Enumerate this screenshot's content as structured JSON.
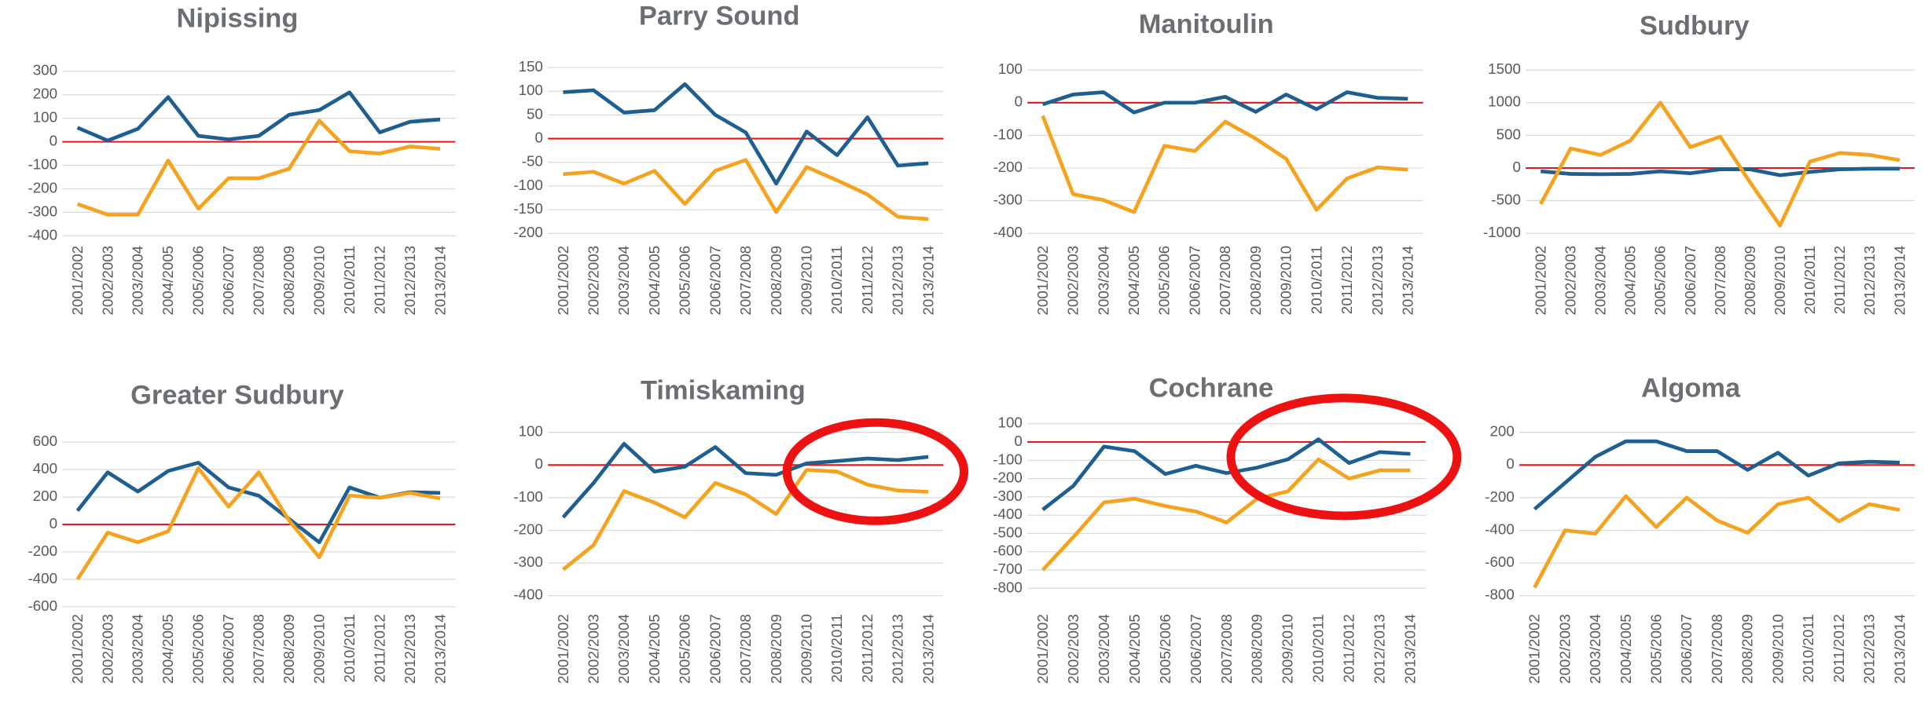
{
  "chart_data": [
    {
      "type": "line",
      "title": "Nipissing",
      "categories": [
        "2001/2002",
        "2002/2003",
        "2003/2004",
        "2004/2005",
        "2005/2006",
        "2006/2007",
        "2007/2008",
        "2008/2009",
        "2009/2010",
        "2010/2011",
        "2011/2012",
        "2012/2013",
        "2013/2014"
      ],
      "series": [
        {
          "color": "#1f5f8f",
          "values": [
            60,
            5,
            55,
            190,
            25,
            10,
            25,
            115,
            135,
            210,
            40,
            85,
            95
          ]
        },
        {
          "color": "#f5a31e",
          "values": [
            -265,
            -310,
            -310,
            -80,
            -285,
            -155,
            -155,
            -115,
            90,
            -40,
            -50,
            -20,
            -30
          ]
        }
      ],
      "ylim": [
        -400,
        300
      ],
      "yticks": [
        300,
        200,
        100,
        0,
        -100,
        -200,
        -300,
        -400
      ],
      "grid": true,
      "reference_line": {
        "value": 0,
        "color": "#e8141a"
      }
    },
    {
      "type": "line",
      "title": "Parry Sound",
      "categories": [
        "2001/2002",
        "2002/2003",
        "2003/2004",
        "2004/2005",
        "2005/2006",
        "2006/2007",
        "2007/2008",
        "2008/2009",
        "2009/2010",
        "2010/2011",
        "2011/2012",
        "2012/2013",
        "2013/2014"
      ],
      "series": [
        {
          "color": "#1f5f8f",
          "values": [
            98,
            102,
            55,
            60,
            115,
            50,
            13,
            -95,
            15,
            -35,
            45,
            -57,
            -52
          ]
        },
        {
          "color": "#f5a31e",
          "values": [
            -75,
            -70,
            -95,
            -68,
            -138,
            -68,
            -45,
            -155,
            -60,
            -88,
            -118,
            -165,
            -170
          ]
        }
      ],
      "ylim": [
        -200,
        150
      ],
      "yticks": [
        150,
        100,
        50,
        0,
        -50,
        -100,
        -150,
        -200
      ],
      "grid": true,
      "reference_line": {
        "value": 0,
        "color": "#e8141a"
      }
    },
    {
      "type": "line",
      "title": "Manitoulin",
      "categories": [
        "2001/2002",
        "2002/2003",
        "2003/2004",
        "2004/2005",
        "2005/2006",
        "2006/2007",
        "2007/2008",
        "2008/2009",
        "2009/2010",
        "2010/2011",
        "2011/2012",
        "2012/2013",
        "2013/2014"
      ],
      "series": [
        {
          "color": "#1f5f8f",
          "values": [
            -5,
            25,
            32,
            -30,
            0,
            0,
            18,
            -28,
            25,
            -20,
            32,
            15,
            12
          ]
        },
        {
          "color": "#f5a31e",
          "values": [
            -40,
            -280,
            -298,
            -335,
            -132,
            -148,
            -58,
            -110,
            -172,
            -328,
            -232,
            -198,
            -205
          ]
        }
      ],
      "ylim": [
        -400,
        100
      ],
      "yticks": [
        100,
        0,
        -100,
        -200,
        -300,
        -400
      ],
      "grid": true,
      "reference_line": {
        "value": 0,
        "color": "#e8141a"
      }
    },
    {
      "type": "line",
      "title": "Sudbury",
      "categories": [
        "2001/2002",
        "2002/2003",
        "2003/2004",
        "2004/2005",
        "2005/2006",
        "2006/2007",
        "2007/2008",
        "2008/2009",
        "2009/2010",
        "2010/2011",
        "2011/2012",
        "2012/2013",
        "2013/2014"
      ],
      "series": [
        {
          "color": "#1f5f8f",
          "values": [
            -50,
            -90,
            -95,
            -90,
            -50,
            -80,
            -20,
            -20,
            -110,
            -60,
            -20,
            -10,
            -10
          ]
        },
        {
          "color": "#f5a31e",
          "values": [
            -550,
            300,
            200,
            420,
            1000,
            320,
            480,
            -220,
            -880,
            100,
            230,
            200,
            120
          ]
        }
      ],
      "ylim": [
        -1000,
        1500
      ],
      "yticks": [
        1500,
        1000,
        500,
        0,
        -500,
        -1000
      ],
      "grid": true,
      "reference_line": {
        "value": 0,
        "color": "#e8141a"
      }
    },
    {
      "type": "line",
      "title": "Greater Sudbury",
      "categories": [
        "2001/2002",
        "2002/2003",
        "2003/2004",
        "2004/2005",
        "2005/2006",
        "2006/2007",
        "2007/2008",
        "2008/2009",
        "2009/2010",
        "2010/2011",
        "2011/2012",
        "2012/2013",
        "2013/2014"
      ],
      "series": [
        {
          "color": "#1f5f8f",
          "values": [
            100,
            380,
            240,
            390,
            450,
            270,
            210,
            40,
            -130,
            270,
            195,
            235,
            230
          ]
        },
        {
          "color": "#f5a31e",
          "values": [
            -400,
            -60,
            -130,
            -50,
            410,
            130,
            380,
            30,
            -240,
            210,
            195,
            230,
            190
          ]
        }
      ],
      "ylim": [
        -600,
        600
      ],
      "yticks": [
        600,
        400,
        200,
        0,
        -200,
        -400,
        -600
      ],
      "grid": true,
      "reference_line": {
        "value": 0,
        "color": "#e8141a"
      }
    },
    {
      "type": "line",
      "title": "Timiskaming",
      "categories": [
        "2001/2002",
        "2002/2003",
        "2003/2004",
        "2004/2005",
        "2005/2006",
        "2006/2007",
        "2007/2008",
        "2008/2009",
        "2009/2010",
        "2010/2011",
        "2011/2012",
        "2012/2013",
        "2013/2014"
      ],
      "series": [
        {
          "color": "#1f5f8f",
          "values": [
            -160,
            -55,
            65,
            -20,
            -5,
            55,
            -25,
            -30,
            5,
            12,
            20,
            15,
            25
          ]
        },
        {
          "color": "#f5a31e",
          "values": [
            -320,
            -245,
            -80,
            -115,
            -160,
            -55,
            -90,
            -150,
            -15,
            -20,
            -60,
            -78,
            -82
          ]
        }
      ],
      "ylim": [
        -400,
        100
      ],
      "yticks": [
        100,
        0,
        -100,
        -200,
        -300,
        -400
      ],
      "grid": true,
      "reference_line": {
        "value": 0,
        "color": "#e8141a"
      }
    },
    {
      "type": "line",
      "title": "Cochrane",
      "categories": [
        "2001/2002",
        "2002/2003",
        "2003/2004",
        "2004/2005",
        "2005/2006",
        "2006/2007",
        "2007/2008",
        "2008/2009",
        "2009/2010",
        "2010/2011",
        "2011/2012",
        "2012/2013",
        "2013/2014"
      ],
      "series": [
        {
          "color": "#1f5f8f",
          "values": [
            -370,
            -240,
            -25,
            -50,
            -175,
            -130,
            -170,
            -140,
            -95,
            15,
            -115,
            -55,
            -65
          ]
        },
        {
          "color": "#f5a31e",
          "values": [
            -700,
            -520,
            -330,
            -310,
            -350,
            -380,
            -440,
            -310,
            -270,
            -95,
            -200,
            -155,
            -155
          ]
        }
      ],
      "ylim": [
        -800,
        100
      ],
      "yticks": [
        100,
        0,
        -100,
        -200,
        -300,
        -400,
        -500,
        -600,
        -700,
        -800
      ],
      "grid": true,
      "reference_line": {
        "value": 0,
        "color": "#e8141a"
      }
    },
    {
      "type": "line",
      "title": "Algoma",
      "categories": [
        "2001/2002",
        "2002/2003",
        "2003/2004",
        "2004/2005",
        "2005/2006",
        "2006/2007",
        "2007/2008",
        "2008/2009",
        "2009/2010",
        "2010/2011",
        "2011/2012",
        "2012/2013",
        "2013/2014"
      ],
      "series": [
        {
          "color": "#1f5f8f",
          "values": [
            -270,
            -110,
            50,
            145,
            145,
            85,
            85,
            -30,
            75,
            -65,
            10,
            20,
            15
          ]
        },
        {
          "color": "#f5a31e",
          "values": [
            -750,
            -400,
            -420,
            -190,
            -380,
            -200,
            -340,
            -415,
            -240,
            -200,
            -345,
            -240,
            -275
          ]
        }
      ],
      "ylim": [
        -800,
        200
      ],
      "yticks": [
        200,
        0,
        -200,
        -400,
        -600,
        -800
      ],
      "grid": true,
      "reference_line": {
        "value": 0,
        "color": "#e8141a"
      }
    }
  ]
}
